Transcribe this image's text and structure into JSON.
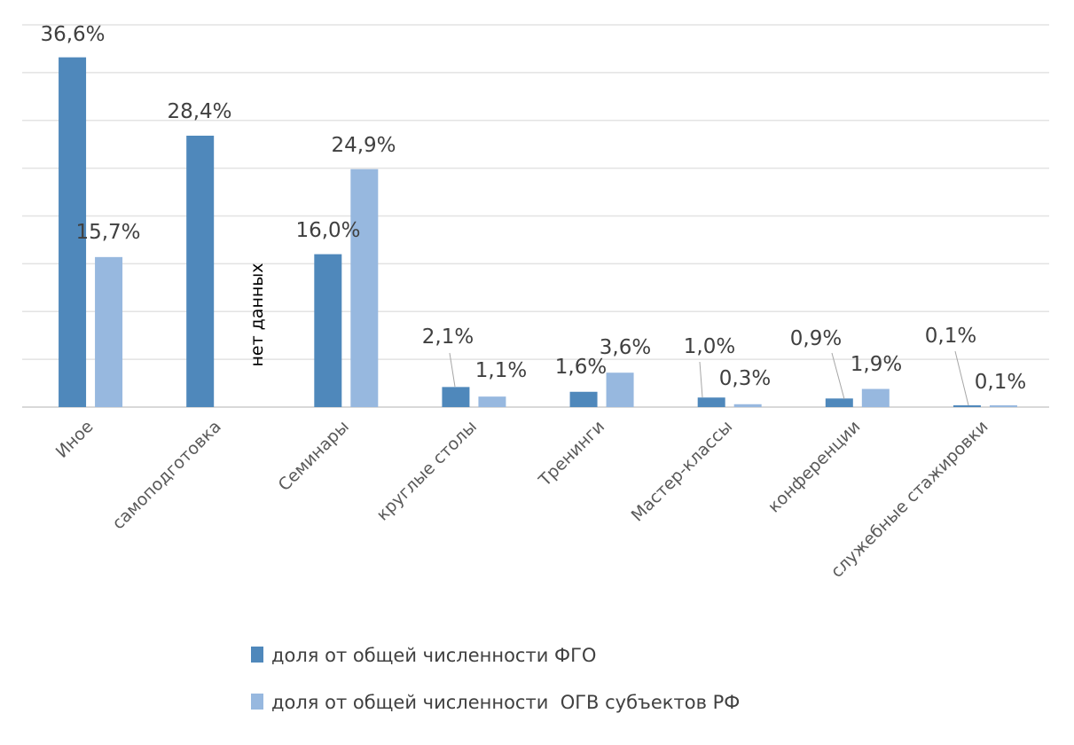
{
  "chart_data": {
    "type": "bar",
    "title": "",
    "xlabel": "",
    "ylabel": "",
    "ylim": [
      0,
      40
    ],
    "grid_step": 5,
    "grid": true,
    "legend_position": "bottom",
    "categories": [
      "Иное",
      "самоподготовка",
      "Семинары",
      "круглые столы",
      "Тренинги",
      "Мастер-классы",
      "конференции",
      "служебные стажировки"
    ],
    "series": [
      {
        "name": "доля от общей численности ФГО",
        "color": "#4F88BB",
        "values": [
          36.6,
          28.4,
          16.0,
          2.1,
          1.6,
          1.0,
          0.9,
          0.1
        ],
        "labels": [
          "36,6%",
          "28,4%",
          "16,0%",
          "2,1%",
          "1,6%",
          "1,0%",
          "0,9%",
          "0,1%"
        ]
      },
      {
        "name": "доля от общей численности  ОГВ субъектов РФ",
        "color": "#97B8DF",
        "values": [
          15.7,
          null,
          24.9,
          1.1,
          3.6,
          0.3,
          1.9,
          0.1
        ],
        "labels": [
          "15,7%",
          null,
          "24,9%",
          "1,1%",
          "3,6%",
          "0,3%",
          "1,9%",
          "0,1%"
        ]
      }
    ],
    "annotations": [
      {
        "category": "самоподготовка",
        "text": "нет данных"
      }
    ]
  }
}
